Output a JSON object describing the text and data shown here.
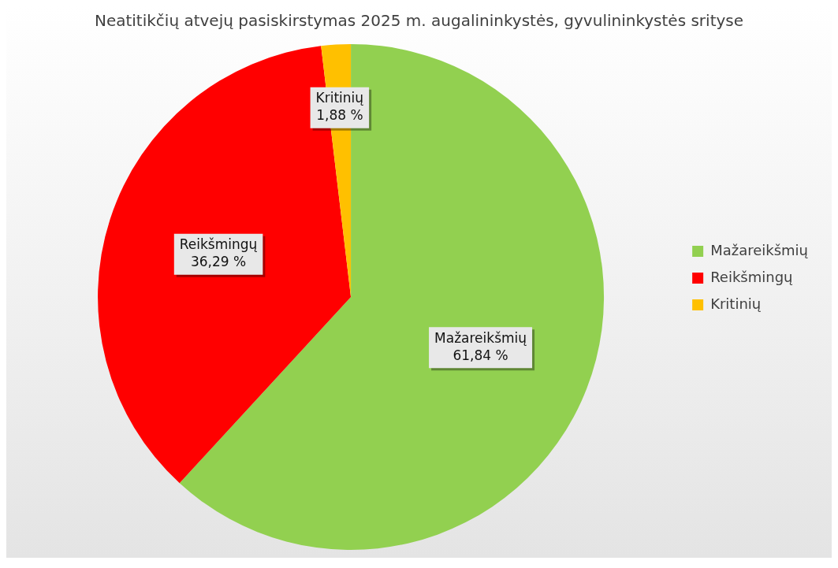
{
  "chart_data": {
    "type": "pie",
    "title": "Neatitikčių atvejų pasiskirstymas 2025 m. augalininkystės, gyvulininkystės srityse",
    "categories": [
      "Mažareikšmių",
      "Reikšmingų",
      "Kritinių"
    ],
    "values": [
      61.84,
      36.29,
      1.88
    ],
    "value_labels": [
      "61,84 %",
      "36,29 %",
      "1,88 %"
    ],
    "colors": [
      "#92d050",
      "#ff0000",
      "#ffc000"
    ],
    "legend": "right"
  }
}
